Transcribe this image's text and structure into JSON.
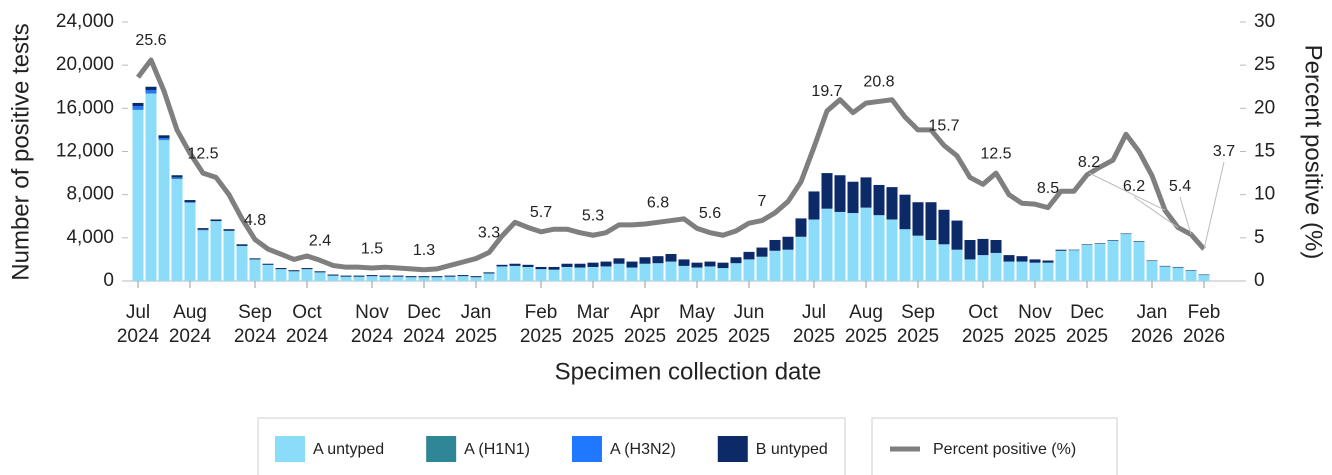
{
  "chart_data": {
    "type": "bar",
    "stacked": true,
    "xlabel": "Specimen collection date",
    "ylabel": "Number of positive tests",
    "y2label": "Percent positive (%)",
    "categories": [
      "Jul 2024",
      null,
      null,
      null,
      "Aug 2024",
      null,
      null,
      null,
      null,
      "Sep 2024",
      null,
      null,
      null,
      "Oct 2024",
      null,
      null,
      null,
      null,
      "Nov 2024",
      null,
      null,
      null,
      "Dec 2024",
      null,
      null,
      null,
      "Jan 2025",
      null,
      null,
      null,
      null,
      "Feb 2025",
      null,
      null,
      null,
      "Mar 2025",
      null,
      null,
      null,
      "Apr 2025",
      null,
      null,
      null,
      "May 2025",
      null,
      null,
      null,
      "Jun 2025",
      null,
      null,
      null,
      null,
      "Jul 2025",
      null,
      null,
      null,
      "Aug 2025",
      null,
      null,
      null,
      "Sep 2025",
      null,
      null,
      null,
      null,
      "Oct 2025",
      null,
      null,
      null,
      "Nov 2025",
      null,
      null,
      null,
      "Dec 2025",
      null,
      null,
      null,
      null,
      "Jan 2026",
      null,
      null,
      null,
      "Feb 2026"
    ],
    "series": [
      {
        "name": "A untyped",
        "color": "#8adcf8",
        "values": [
          15850,
          17350,
          13050,
          9450,
          7250,
          4700,
          5550,
          4650,
          3250,
          2000,
          1500,
          1100,
          900,
          1100,
          800,
          500,
          400,
          400,
          450,
          400,
          400,
          350,
          350,
          350,
          400,
          450,
          350,
          700,
          1350,
          1400,
          1300,
          1100,
          1050,
          1300,
          1250,
          1300,
          1350,
          1600,
          1250,
          1600,
          1650,
          1800,
          1400,
          1250,
          1350,
          1200,
          1650,
          2000,
          2250,
          2800,
          2900,
          4100,
          5700,
          6700,
          6400,
          6300,
          6800,
          6100,
          5700,
          4800,
          4200,
          3800,
          3400,
          2900,
          2000,
          2400,
          2600,
          1800,
          1800,
          1700,
          1700,
          2800,
          2850,
          3350,
          3450,
          3750,
          4350,
          3650,
          1850,
          1350,
          1250,
          950,
          550
        ]
      },
      {
        "name": "A (H1N1)",
        "color": "#2f8696",
        "values": [
          50,
          50,
          50,
          50,
          0,
          0,
          0,
          0,
          0,
          0,
          0,
          0,
          0,
          0,
          0,
          0,
          0,
          0,
          0,
          0,
          0,
          0,
          0,
          0,
          0,
          0,
          0,
          0,
          0,
          0,
          0,
          0,
          0,
          0,
          0,
          0,
          0,
          0,
          0,
          0,
          0,
          0,
          0,
          0,
          0,
          0,
          0,
          0,
          0,
          0,
          0,
          0,
          0,
          0,
          0,
          0,
          0,
          0,
          0,
          0,
          0,
          0,
          0,
          0,
          0,
          0,
          0,
          0,
          0,
          0,
          0,
          0,
          0,
          0,
          0,
          0,
          0,
          0,
          0,
          0,
          0,
          0,
          0
        ]
      },
      {
        "name": "A (H3N2)",
        "color": "#1f78ff",
        "values": [
          300,
          300,
          150,
          100,
          50,
          50,
          0,
          0,
          0,
          0,
          0,
          0,
          0,
          0,
          0,
          0,
          0,
          0,
          0,
          0,
          0,
          0,
          0,
          0,
          0,
          0,
          0,
          0,
          0,
          0,
          0,
          0,
          0,
          0,
          0,
          0,
          0,
          0,
          0,
          0,
          0,
          0,
          0,
          0,
          0,
          0,
          0,
          0,
          0,
          0,
          0,
          0,
          0,
          0,
          0,
          0,
          0,
          0,
          0,
          0,
          0,
          0,
          0,
          0,
          0,
          0,
          0,
          0,
          0,
          0,
          0,
          0,
          0,
          0,
          0,
          0,
          0,
          0,
          0,
          0,
          0,
          0,
          0
        ]
      },
      {
        "name": "B untyped",
        "color": "#0c2a68",
        "values": [
          300,
          300,
          250,
          200,
          200,
          150,
          150,
          150,
          150,
          100,
          100,
          100,
          100,
          100,
          100,
          100,
          100,
          100,
          100,
          100,
          100,
          100,
          100,
          100,
          100,
          100,
          100,
          100,
          150,
          200,
          200,
          200,
          250,
          300,
          350,
          400,
          450,
          500,
          550,
          600,
          650,
          700,
          600,
          450,
          450,
          500,
          550,
          700,
          850,
          1000,
          1200,
          1700,
          2600,
          3300,
          3400,
          2900,
          2800,
          2800,
          3000,
          3200,
          3100,
          3500,
          3200,
          2700,
          1800,
          1500,
          1200,
          600,
          500,
          300,
          200,
          100,
          50,
          50,
          50,
          50,
          50,
          50,
          50,
          50,
          50,
          50,
          50
        ]
      },
      {
        "name": "Percent positive (%)",
        "type": "line",
        "axis": "y2",
        "color": "#7f7f7f",
        "values": [
          23.6,
          25.6,
          22,
          17.5,
          14.8,
          12.5,
          12,
          10,
          7.2,
          4.8,
          3.7,
          3.1,
          2.5,
          2.9,
          2.4,
          1.8,
          1.6,
          1.6,
          1.5,
          1.6,
          1.5,
          1.4,
          1.3,
          1.4,
          1.8,
          2.2,
          2.6,
          3.3,
          5.2,
          6.8,
          6.2,
          5.7,
          6,
          6,
          5.6,
          5.3,
          5.6,
          6.5,
          6.5,
          6.6,
          6.8,
          7,
          7.2,
          6.1,
          5.6,
          5.3,
          5.8,
          6.7,
          7,
          7.9,
          9.2,
          11.5,
          15.5,
          19.7,
          21,
          19.5,
          20.6,
          20.8,
          21,
          19,
          17.5,
          17.5,
          15.7,
          14.5,
          12,
          11.2,
          12.5,
          10,
          9,
          8.9,
          8.5,
          10.4,
          10.4,
          12.3,
          13.2,
          14,
          17,
          15,
          12.2,
          8.2,
          6.2,
          5.4,
          3.7
        ],
        "value_labels": [
          null,
          "25.6",
          null,
          null,
          null,
          "12.5",
          null,
          null,
          null,
          "4.8",
          null,
          null,
          null,
          null,
          "2.4",
          null,
          null,
          null,
          "1.5",
          null,
          null,
          null,
          "1.3",
          null,
          null,
          null,
          null,
          "3.3",
          null,
          null,
          null,
          "5.7",
          null,
          null,
          null,
          "5.3",
          null,
          null,
          null,
          null,
          "6.8",
          null,
          null,
          null,
          "5.6",
          null,
          null,
          null,
          "7",
          null,
          null,
          null,
          null,
          "19.7",
          null,
          null,
          null,
          "20.8",
          null,
          null,
          null,
          null,
          "15.7",
          null,
          null,
          null,
          "12.5",
          null,
          null,
          null,
          "8.5",
          null,
          null,
          null,
          null,
          null,
          null,
          null,
          null,
          "8.2",
          "6.2",
          "5.4",
          "3.7"
        ]
      }
    ],
    "ylim": [
      0,
      24000
    ],
    "yticks": [
      0,
      {
        "value": 4000,
        "label": "4,000"
      },
      {
        "value": 8000,
        "label": "8,000"
      },
      {
        "value": 12000,
        "label": "12,000"
      },
      {
        "value": 16000,
        "label": "16,000"
      },
      {
        "value": 20000,
        "label": "20,000"
      },
      {
        "value": 24000,
        "label": "24,000"
      }
    ],
    "y2lim": [
      0,
      30
    ],
    "y2ticks": [
      0,
      5,
      10,
      15,
      20,
      25,
      30
    ]
  }
}
